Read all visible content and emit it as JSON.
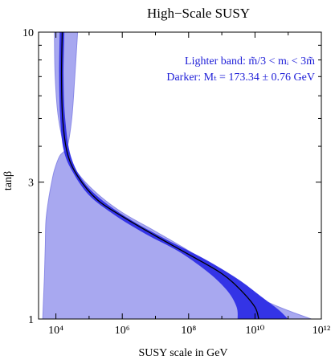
{
  "chart_data": {
    "type": "area",
    "title": "High−Scale SUSY",
    "xlabel": "SUSY scale in GeV",
    "ylabel": "tanβ",
    "x_scale": "log",
    "y_scale": "log",
    "xlim": [
      3000,
      1000000000000
    ],
    "ylim": [
      1,
      10
    ],
    "x_ticks": [
      {
        "value": 10000,
        "label": "10⁴"
      },
      {
        "value": 1000000,
        "label": "10⁶"
      },
      {
        "value": 100000000,
        "label": "10⁸"
      },
      {
        "value": 10000000000,
        "label": "10¹⁰"
      },
      {
        "value": 1000000000000,
        "label": "10¹²"
      }
    ],
    "y_ticks": [
      {
        "value": 1,
        "label": "1"
      },
      {
        "value": 3,
        "label": "3"
      },
      {
        "value": 10,
        "label": "10"
      }
    ],
    "annotations": [
      "Lighter band: m̃/3 < mᵢ < 3m̃",
      "Darker: Mₜ = 173.34 ± 0.76 GeV"
    ],
    "colors": {
      "light_band": "#a8a8f0",
      "light_band_edge": "#8a8ae6",
      "dark_band": "#3434e6",
      "central_line": "#000000",
      "annotation": "#2020d8"
    },
    "series": [
      {
        "role": "light-band",
        "upper": [
          [
            9000,
            10
          ],
          [
            9500,
            7
          ],
          [
            12000,
            5
          ],
          [
            22000,
            3.7
          ],
          [
            60000,
            3.1
          ],
          [
            200000,
            2.7
          ],
          [
            1000000,
            2.35
          ],
          [
            10000000,
            2.02
          ],
          [
            100000000,
            1.73
          ],
          [
            1000000000,
            1.46
          ],
          [
            5000000000,
            1.3
          ],
          [
            20000000000,
            1.16
          ],
          [
            100000000000,
            1.07
          ],
          [
            500000000000,
            1.0
          ]
        ],
        "lower": [
          [
            45000,
            10
          ],
          [
            37000,
            7
          ],
          [
            30000,
            5
          ],
          [
            22000,
            4.0
          ],
          [
            13000,
            3.7
          ],
          [
            9000,
            3.3
          ],
          [
            7500,
            3.0
          ],
          [
            6000,
            2.6
          ],
          [
            5000,
            2.2
          ],
          [
            4800,
            1.8
          ],
          [
            4500,
            1.4
          ],
          [
            4000,
            1.0
          ]
        ]
      },
      {
        "role": "dark-band",
        "upper": [
          [
            18000,
            10
          ],
          [
            17000,
            7
          ],
          [
            19000,
            5
          ],
          [
            28000,
            3.7
          ],
          [
            70000,
            3.0
          ],
          [
            300000,
            2.55
          ],
          [
            2000000,
            2.2
          ],
          [
            20000000,
            1.9
          ],
          [
            300000000,
            1.62
          ],
          [
            3000000000,
            1.38
          ],
          [
            15000000000,
            1.2
          ],
          [
            50000000000,
            1.08
          ],
          [
            100000000000,
            1.0
          ]
        ],
        "lower": [
          [
            13000,
            10
          ],
          [
            12500,
            7
          ],
          [
            13500,
            5
          ],
          [
            17000,
            3.9
          ],
          [
            30000,
            3.3
          ],
          [
            100000,
            2.7
          ],
          [
            600000,
            2.3
          ],
          [
            5000000,
            1.98
          ],
          [
            50000000,
            1.72
          ],
          [
            400000000,
            1.45
          ],
          [
            1500000000,
            1.25
          ],
          [
            2800000000,
            1.1
          ],
          [
            3000000000,
            1.0
          ]
        ]
      },
      {
        "role": "central-line",
        "points": [
          [
            15500,
            10
          ],
          [
            14800,
            7
          ],
          [
            16000,
            5
          ],
          [
            22000,
            3.8
          ],
          [
            45000,
            3.15
          ],
          [
            180000,
            2.6
          ],
          [
            1200000,
            2.25
          ],
          [
            10000000,
            1.95
          ],
          [
            100000000,
            1.68
          ],
          [
            1000000000,
            1.44
          ],
          [
            4000000000,
            1.25
          ],
          [
            10000000000,
            1.1
          ],
          [
            13000000000,
            1.0
          ]
        ]
      }
    ]
  }
}
